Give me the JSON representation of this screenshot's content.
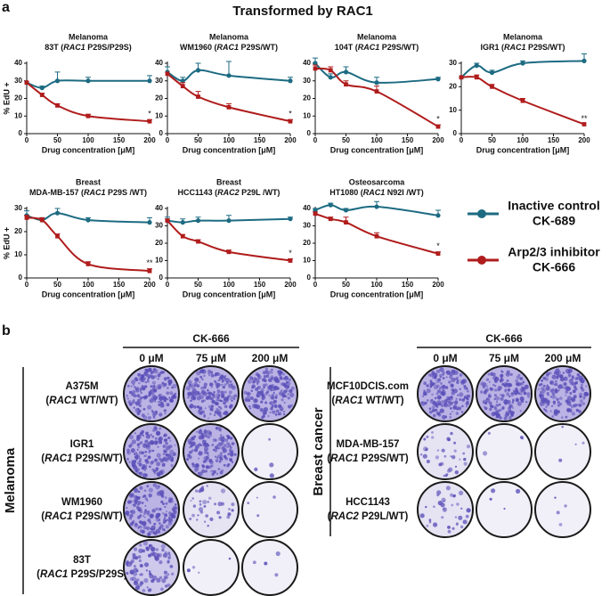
{
  "panel_labels": [
    "a",
    "b"
  ],
  "panel_a": {
    "title": "Transformed by RAC1"
  },
  "chart_data": [
    {
      "type": "line",
      "title": "Melanoma",
      "subtitle": [
        "83T (",
        "RAC1",
        " P29S/P29S)"
      ],
      "x": [
        0,
        25,
        50,
        100,
        200
      ],
      "xlim": [
        0,
        200
      ],
      "xticks": [
        0,
        50,
        100,
        150,
        200
      ],
      "xlabel": "Drug concentration [μM]",
      "ylabel": "% EdU +",
      "ylim": [
        0,
        40
      ],
      "yticks": [
        0,
        10,
        20,
        30,
        40
      ],
      "series": [
        {
          "color": "#1d6b82",
          "values": [
            29,
            26,
            30,
            30,
            30
          ],
          "errors": [
            0,
            1,
            5,
            2,
            3
          ]
        },
        {
          "color": "#b01c1c",
          "values": [
            29,
            22,
            16,
            10,
            7
          ],
          "errors": [
            0,
            1,
            1,
            1,
            1
          ]
        }
      ],
      "significance": "*"
    },
    {
      "type": "line",
      "title": "Melanoma",
      "subtitle": [
        "WM1960 (",
        "RAC1",
        " P29S/WT)"
      ],
      "x": [
        0,
        25,
        50,
        100,
        200
      ],
      "xlim": [
        0,
        200
      ],
      "xticks": [
        0,
        50,
        100,
        150,
        200
      ],
      "xlabel": "Drug concentration [μM]",
      "ylim": [
        0,
        40
      ],
      "yticks": [
        0,
        10,
        20,
        30,
        40
      ],
      "series": [
        {
          "color": "#1d6b82",
          "values": [
            35,
            30,
            36,
            33,
            30
          ],
          "errors": [
            3,
            2,
            4,
            8,
            2
          ]
        },
        {
          "color": "#b01c1c",
          "values": [
            34,
            27,
            21,
            15,
            7
          ],
          "errors": [
            0,
            2,
            3,
            2,
            1
          ]
        }
      ],
      "significance": "*"
    },
    {
      "type": "line",
      "title": "Melanoma",
      "subtitle": [
        "104T (",
        "RAC1",
        " P29S/WT)"
      ],
      "x": [
        0,
        25,
        50,
        100,
        200
      ],
      "xlim": [
        0,
        200
      ],
      "xticks": [
        0,
        50,
        100,
        150,
        200
      ],
      "xlabel": "Drug concentration [μM]",
      "ylim": [
        0,
        40
      ],
      "yticks": [
        0,
        10,
        20,
        30,
        40
      ],
      "series": [
        {
          "color": "#1d6b82",
          "values": [
            40,
            32,
            35,
            29,
            31
          ],
          "errors": [
            3,
            2,
            3,
            3,
            1
          ]
        },
        {
          "color": "#b01c1c",
          "values": [
            37,
            36,
            28,
            24,
            4
          ],
          "errors": [
            2,
            2,
            2,
            3,
            1
          ]
        }
      ],
      "significance": "*"
    },
    {
      "type": "line",
      "title": "Melanoma",
      "subtitle": [
        "IGR1 (",
        "RAC1",
        " P29S/WT)"
      ],
      "x": [
        0,
        25,
        50,
        100,
        200
      ],
      "xlim": [
        0,
        200
      ],
      "xticks": [
        0,
        50,
        100,
        150,
        200
      ],
      "xlabel": "Drug concentration [μM]",
      "ylim": [
        0,
        30
      ],
      "yticks": [
        0,
        10,
        20,
        30
      ],
      "series": [
        {
          "color": "#1d6b82",
          "values": [
            24,
            29,
            26,
            30,
            31
          ],
          "errors": [
            0,
            1,
            1,
            1,
            3
          ]
        },
        {
          "color": "#b01c1c",
          "values": [
            24,
            24,
            20,
            14,
            4
          ],
          "errors": [
            0,
            1,
            1,
            1,
            0
          ]
        }
      ],
      "significance": "**"
    },
    {
      "type": "line",
      "title": "Breast",
      "subtitle": [
        "MDA-MB-157 (",
        "RAC1",
        " P29S /WT)"
      ],
      "x": [
        0,
        25,
        50,
        100,
        200
      ],
      "xlim": [
        0,
        200
      ],
      "xticks": [
        0,
        50,
        100,
        150,
        200
      ],
      "xlabel": "Drug concentration [μM]",
      "ylabel": "% EdU +",
      "ylim": [
        0,
        30
      ],
      "yticks": [
        0,
        10,
        20,
        30
      ],
      "series": [
        {
          "color": "#1d6b82",
          "values": [
            27,
            25,
            28,
            25,
            24
          ],
          "errors": [
            2,
            1,
            2,
            1,
            2
          ]
        },
        {
          "color": "#b01c1c",
          "values": [
            26,
            25,
            18,
            6,
            3
          ],
          "errors": [
            1,
            1,
            1,
            1,
            1
          ]
        }
      ],
      "significance": "**"
    },
    {
      "type": "line",
      "title": "Breast",
      "subtitle": [
        "HCC1143 (",
        "RAC2",
        " P29L /WT)"
      ],
      "x": [
        0,
        25,
        50,
        100,
        200
      ],
      "xlim": [
        0,
        200
      ],
      "xticks": [
        0,
        50,
        100,
        150,
        200
      ],
      "xlabel": "Drug concentration [μM]",
      "ylim": [
        0,
        40
      ],
      "yticks": [
        0,
        10,
        20,
        30,
        40
      ],
      "series": [
        {
          "color": "#1d6b82",
          "values": [
            33,
            32,
            33,
            33,
            34
          ],
          "errors": [
            2,
            2,
            2,
            3,
            1
          ]
        },
        {
          "color": "#b01c1c",
          "values": [
            33,
            24,
            21,
            15,
            10
          ],
          "errors": [
            1,
            1,
            1,
            1,
            1
          ]
        }
      ],
      "significance": "*"
    },
    {
      "type": "line",
      "title": "Osteosarcoma",
      "subtitle": [
        "HT1080 (",
        "RAC1",
        " N92I /WT)"
      ],
      "x": [
        0,
        25,
        50,
        100,
        200
      ],
      "xlim": [
        0,
        200
      ],
      "xticks": [
        0,
        50,
        100,
        150,
        200
      ],
      "xlabel": "Drug concentration [μM]",
      "ylim": [
        0,
        40
      ],
      "yticks": [
        0,
        10,
        20,
        30,
        40
      ],
      "series": [
        {
          "color": "#1d6b82",
          "values": [
            39,
            42,
            39,
            41,
            36
          ],
          "errors": [
            1,
            1,
            1,
            3,
            3
          ]
        },
        {
          "color": "#b01c1c",
          "values": [
            37,
            34,
            32,
            24,
            14
          ],
          "errors": [
            1,
            1,
            3,
            2,
            1
          ]
        }
      ],
      "significance": "*"
    }
  ],
  "legend": [
    {
      "label": [
        "Inactive control",
        "CK-689"
      ],
      "color": "#1d6b82"
    },
    {
      "label": [
        "Arp2/3 inhibitor",
        "CK-666"
      ],
      "color": "#b01c1c"
    }
  ],
  "panel_b": {
    "tables": [
      {
        "group": "Melanoma",
        "treatment": "CK-666",
        "columns": [
          "0 μM",
          "75 μM",
          "200 μM"
        ],
        "rows": [
          {
            "name": "A375M",
            "genotype": [
              "(",
              "RAC1",
              " WT/WT)"
            ]
          },
          {
            "name": "IGR1",
            "genotype": [
              "(",
              "RAC1",
              " P29S/WT)"
            ]
          },
          {
            "name": "WM1960",
            "genotype": [
              "(",
              "RAC1",
              " P29S/WT)"
            ]
          },
          {
            "name": "83T",
            "genotype": [
              "(",
              "RAC1",
              " P29S/P29S)"
            ]
          }
        ]
      },
      {
        "group": "Breast cancer",
        "treatment": "CK-666",
        "columns": [
          "0 μM",
          "75 μM",
          "200 μM"
        ],
        "rows": [
          {
            "name": "MCF10DCIS.com",
            "genotype": [
              "(",
              "RAC1",
              " WT/WT)"
            ]
          },
          {
            "name": "MDA-MB-157",
            "genotype": [
              "(",
              "RAC1",
              " P29S/WT)"
            ]
          },
          {
            "name": "HCC1143",
            "genotype": [
              "(",
              "RAC2",
              " P29L/WT)"
            ]
          }
        ]
      }
    ]
  }
}
